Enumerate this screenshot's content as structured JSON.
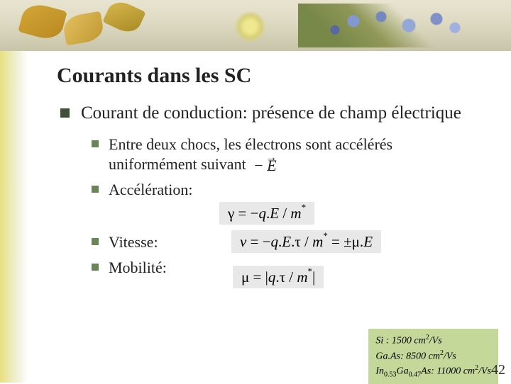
{
  "banner": {
    "bg_gradient": [
      "#e8e4d0",
      "#dcd8c0",
      "#c8c4a8"
    ],
    "leaf_colors": [
      "#d4a838",
      "#e4c060",
      "#d8b850"
    ],
    "flower_colors": [
      "#8498d0",
      "#7488c0",
      "#94a8d8"
    ]
  },
  "left_strip_color": "#e8e080",
  "title": "Courants dans les SC",
  "main_bullet_color": "#3e5038",
  "sub_bullet_color": "#6a845a",
  "main_item": "Courant de conduction: présence de champ électrique",
  "sub_items": {
    "item1_prefix": "Entre deux chocs, les électrons sont accélérés uniformément suivant",
    "item1_vec_sign": "−",
    "item1_vec_var": "E",
    "item2_label": "Accélération:",
    "item2_formula_html": "γ = −<span class=\"it\">q</span>.<span class=\"it\">E</span> / <span class=\"it\">m</span><sup>*</sup>",
    "item3_label": "Vitesse:",
    "item3_formula_html": "<span class=\"it\">v</span> = −<span class=\"it\">q</span>.<span class=\"it\">E</span>.τ / <span class=\"it\">m</span><sup>*</sup> = ±μ.<span class=\"it\">E</span>",
    "item4_label": "Mobilité:",
    "item4_formula_html": "μ = |<span class=\"it\">q</span>.τ / <span class=\"it\">m</span><sup>*</sup>|"
  },
  "formula_box_bg": "#e8e8e8",
  "mobility_box": {
    "bg": "#c4d89a",
    "lines": [
      "Si : 1500 cm<sup>2</sup>/Vs",
      "Ga.As: 8500 cm<sup>2</sup>/Vs",
      "In<sub>0.53</sub>Ga<sub>0.47</sub>As: 11000 cm<sup>2</sup>/Vs"
    ]
  },
  "page_number": "42",
  "typography": {
    "title_fontsize": 30,
    "main_fontsize": 25,
    "sub_fontsize": 22,
    "formula_fontsize": 21,
    "mobility_fontsize": 14
  }
}
